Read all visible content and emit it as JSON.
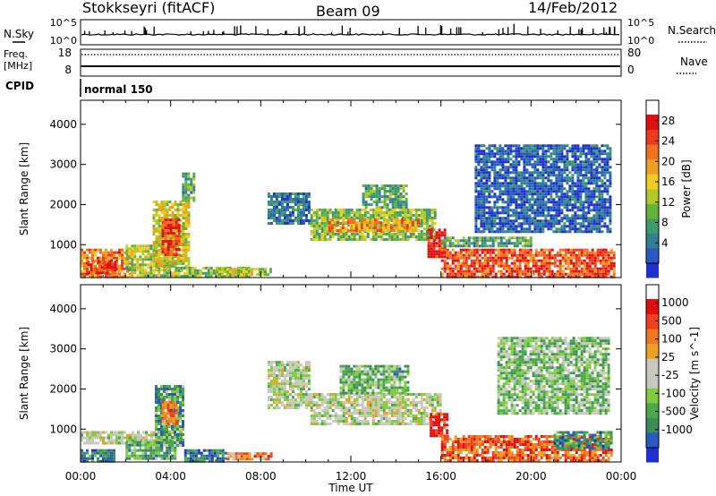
{
  "header": {
    "station": "Stokkseyri (fitACF)",
    "beam": "Beam 09",
    "date": "14/Feb/2012"
  },
  "top_panels": {
    "nsky_label": "N.Sky",
    "nsearch_label": "N.Search",
    "nsky_ticks": [
      "10^5",
      "10^0"
    ],
    "nsearch_ticks": [
      "10^5",
      "10^0"
    ],
    "freq_label": "Freq.",
    "freq_unit": "[MHz]",
    "freq_ticks": [
      "18",
      "8"
    ],
    "nave_label": "Nave",
    "nave_ticks": [
      "80",
      "0"
    ],
    "cpid_label": "CPID",
    "mode_text": "normal 150"
  },
  "chart_data": [
    {
      "type": "heatmap",
      "panel": "power",
      "ylabel": "Slant Range [km]",
      "yticks": [
        1000,
        2000,
        3000,
        4000
      ],
      "ylim": [
        180,
        4600
      ],
      "xlim_hours": [
        0,
        24
      ],
      "colorbar": {
        "label": "Power [dB]",
        "ticks": [
          "28",
          "24",
          "20",
          "16",
          "12",
          "8",
          "4"
        ],
        "colors": [
          "#1e2fd0",
          "#2a59c0",
          "#2f7f95",
          "#3c9c6a",
          "#64b43a",
          "#b2c828",
          "#f0cc20",
          "#f0a020",
          "#f07020",
          "#e83c1c",
          "#e01010"
        ]
      },
      "regions": [
        {
          "t0": 0.0,
          "t1": 2.2,
          "r0": 230,
          "r1": 900,
          "level": 0.75
        },
        {
          "t0": 0.3,
          "t1": 1.5,
          "r0": 300,
          "r1": 600,
          "level": 0.9
        },
        {
          "t0": 2.0,
          "t1": 4.2,
          "r0": 250,
          "r1": 1000,
          "level": 0.5
        },
        {
          "t0": 3.2,
          "t1": 4.8,
          "r0": 450,
          "r1": 2100,
          "level": 0.55
        },
        {
          "t0": 3.6,
          "t1": 4.4,
          "r0": 750,
          "r1": 1650,
          "level": 0.9
        },
        {
          "t0": 4.5,
          "t1": 5.0,
          "r0": 2100,
          "r1": 2800,
          "level": 0.35
        },
        {
          "t0": 4.2,
          "t1": 7.5,
          "r0": 220,
          "r1": 450,
          "level": 0.45
        },
        {
          "t0": 6.0,
          "t1": 8.5,
          "r0": 230,
          "r1": 420,
          "level": 0.5
        },
        {
          "t0": 8.3,
          "t1": 10.2,
          "r0": 1500,
          "r1": 2300,
          "level": 0.2
        },
        {
          "t0": 10.2,
          "t1": 15.8,
          "r0": 1150,
          "r1": 1900,
          "level": 0.45
        },
        {
          "t0": 11.0,
          "t1": 15.0,
          "r0": 1350,
          "r1": 1650,
          "level": 0.7
        },
        {
          "t0": 12.5,
          "t1": 14.5,
          "r0": 1900,
          "r1": 2500,
          "level": 0.35
        },
        {
          "t0": 15.4,
          "t1": 16.2,
          "r0": 700,
          "r1": 1400,
          "level": 0.95
        },
        {
          "t0": 16.0,
          "t1": 23.7,
          "r0": 200,
          "r1": 900,
          "level": 0.85
        },
        {
          "t0": 16.0,
          "t1": 20.0,
          "r0": 950,
          "r1": 1200,
          "level": 0.35
        },
        {
          "t0": 17.5,
          "t1": 23.5,
          "r0": 1300,
          "r1": 3500,
          "level": 0.15
        }
      ]
    },
    {
      "type": "heatmap",
      "panel": "velocity",
      "ylabel": "Slant Range [km]",
      "yticks": [
        1000,
        2000,
        3000,
        4000
      ],
      "ylim": [
        180,
        4600
      ],
      "xlim_hours": [
        0,
        24
      ],
      "xlabel": "Time UT",
      "xticks": [
        "00:00",
        "04:00",
        "08:00",
        "12:00",
        "16:00",
        "20:00",
        "00:00"
      ],
      "colorbar": {
        "label": "Velocity [m s^-1]",
        "ticks": [
          "1000",
          "500",
          "100",
          "25",
          "-25",
          "-100",
          "-500",
          "-1000"
        ],
        "colors": [
          "#1e2fd0",
          "#2a59c0",
          "#3c8c5a",
          "#4aa84a",
          "#80cc40",
          "#c8c8c0",
          "#c8c8c0",
          "#f0a020",
          "#f07820",
          "#f04020",
          "#e01010"
        ]
      },
      "regions": [
        {
          "t0": 0.0,
          "t1": 4.5,
          "r0": 650,
          "r1": 950,
          "level": 0.5
        },
        {
          "t0": 0.0,
          "t1": 1.5,
          "r0": 200,
          "r1": 500,
          "level": 0.25
        },
        {
          "t0": 2.0,
          "t1": 4.2,
          "r0": 250,
          "r1": 700,
          "level": 0.3
        },
        {
          "t0": 3.3,
          "t1": 4.6,
          "r0": 600,
          "r1": 2100,
          "level": 0.3
        },
        {
          "t0": 3.6,
          "t1": 4.3,
          "r0": 1100,
          "r1": 1700,
          "level": 0.75
        },
        {
          "t0": 4.6,
          "t1": 6.5,
          "r0": 220,
          "r1": 500,
          "level": 0.2
        },
        {
          "t0": 6.5,
          "t1": 8.5,
          "r0": 220,
          "r1": 420,
          "level": 0.75
        },
        {
          "t0": 8.3,
          "t1": 10.2,
          "r0": 1500,
          "r1": 2700,
          "level": 0.5
        },
        {
          "t0": 10.2,
          "t1": 16.0,
          "r0": 1100,
          "r1": 1900,
          "level": 0.5
        },
        {
          "t0": 11.5,
          "t1": 14.5,
          "r0": 1900,
          "r1": 2600,
          "level": 0.35
        },
        {
          "t0": 15.5,
          "t1": 16.3,
          "r0": 800,
          "r1": 1400,
          "level": 0.98
        },
        {
          "t0": 16.0,
          "t1": 23.6,
          "r0": 200,
          "r1": 850,
          "level": 0.82
        },
        {
          "t0": 21.0,
          "t1": 23.6,
          "r0": 500,
          "r1": 950,
          "level": 0.25
        },
        {
          "t0": 18.5,
          "t1": 23.4,
          "r0": 1400,
          "r1": 3300,
          "level": 0.4
        }
      ]
    }
  ]
}
